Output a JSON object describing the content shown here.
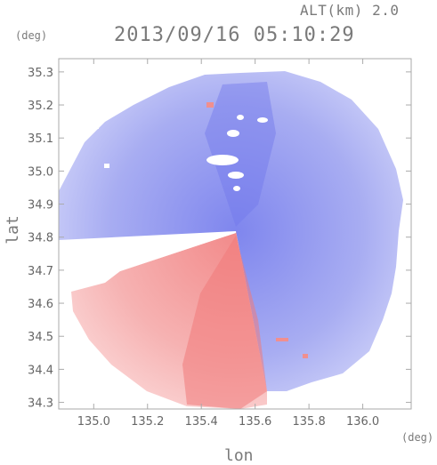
{
  "header": {
    "alt_label": "ALT(km) 2.0",
    "timestamp": "2013/09/16 05:10:29"
  },
  "chart_data": {
    "type": "heatmap",
    "title": "2013/09/16 05:10:29",
    "subtitle": "ALT(km) 2.0",
    "xlabel": "lon",
    "ylabel": "lat",
    "x_unit": "(deg)",
    "y_unit": "(deg)",
    "xlim": [
      134.87,
      136.18
    ],
    "ylim": [
      34.28,
      35.34
    ],
    "x_ticks": [
      "135.0",
      "135.2",
      "135.4",
      "135.6",
      "135.8",
      "136.0"
    ],
    "y_ticks": [
      "35.3",
      "35.2",
      "35.1",
      "35.0",
      "34.9",
      "34.8",
      "34.7",
      "34.6",
      "34.5",
      "34.4",
      "34.3"
    ],
    "x_tick_values": [
      135.0,
      135.2,
      135.4,
      135.6,
      135.8,
      136.0
    ],
    "y_tick_values": [
      35.3,
      35.2,
      35.1,
      35.0,
      34.9,
      34.8,
      34.7,
      34.6,
      34.5,
      34.4,
      34.3
    ],
    "radar_center": [
      135.52,
      34.81
    ],
    "colors": {
      "positive": "#f07a7a",
      "negative": "#7f86ee",
      "neutral": "#ffffff",
      "axis": "#999999"
    },
    "grid": false
  }
}
